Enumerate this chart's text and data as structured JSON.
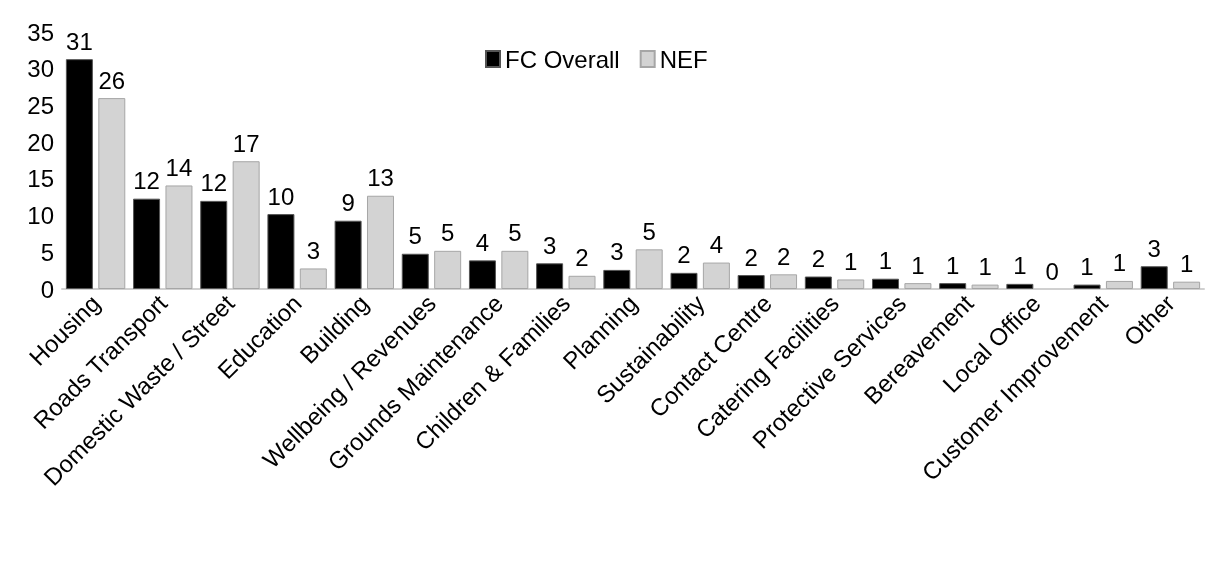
{
  "chart_data": {
    "type": "bar",
    "categories": [
      "Housing",
      "Roads Transport",
      "Domestic Waste / Street",
      "Education",
      "Building",
      "Wellbeing / Revenues",
      "Grounds Maintenance",
      "Children & Families",
      "Planning",
      "Sustainability",
      "Contact Centre",
      "Catering Facilities",
      "Protective Services",
      "Bereavement",
      "Local Office",
      "Customer Improvement",
      "Other"
    ],
    "series": [
      {
        "name": "FC Overall",
        "color": "#000000",
        "values": [
          31.3,
          12.3,
          12.0,
          10.2,
          9.3,
          4.8,
          3.9,
          3.5,
          2.6,
          2.2,
          1.9,
          1.7,
          1.4,
          0.8,
          0.7,
          0.6,
          3.1
        ],
        "value_labels": [
          "31",
          "12",
          "12",
          "10",
          "9",
          "5",
          "4",
          "3",
          "3",
          "2",
          "2",
          "2",
          "1",
          "1",
          "1",
          "1",
          "3"
        ]
      },
      {
        "name": "NEF",
        "color": "#d3d3d3",
        "values": [
          26.0,
          14.1,
          17.4,
          2.8,
          12.7,
          5.2,
          5.2,
          1.8,
          5.4,
          3.6,
          2.0,
          1.3,
          0.8,
          0.6,
          0,
          1.1,
          1.0
        ],
        "value_labels": [
          "26",
          "14",
          "17",
          "3",
          "13",
          "5",
          "5",
          "2",
          "5",
          "4",
          "2",
          "1",
          "1",
          "1",
          "0",
          "1",
          "1"
        ]
      }
    ],
    "ylim": [
      0,
      35
    ],
    "yticks": [
      0,
      5,
      10,
      15,
      20,
      25,
      30,
      35
    ],
    "grid": false,
    "legend": "top"
  }
}
